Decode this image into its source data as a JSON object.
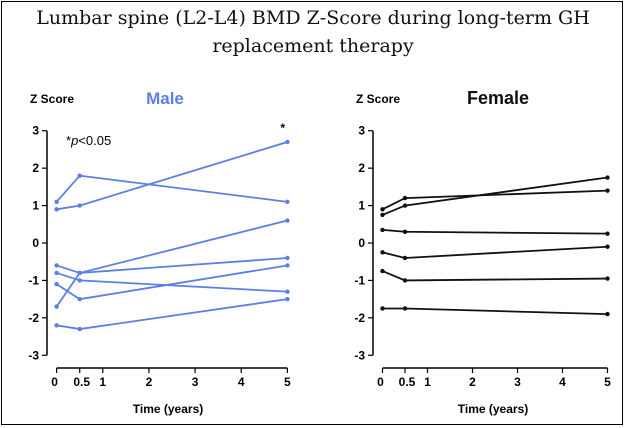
{
  "title_line1": "Lumbar spine (L2-L4) BMD Z-Score during long-term GH",
  "title_line2": "replacement therapy",
  "chart_data": [
    {
      "type": "line",
      "title": "Male",
      "ylabel": "Z Score",
      "xlabel": "Time (years)",
      "annotation": "*p<0.05",
      "annotation_prefix": "*",
      "annotation_italic": "p",
      "annotation_suffix": "<0.05",
      "color": "#5b7fe6",
      "xticks": [
        0,
        0.5,
        1,
        2,
        3,
        4,
        5
      ],
      "xtick_labels": [
        "0",
        "0.5",
        "1",
        "2",
        "3",
        "4",
        "5"
      ],
      "yticks": [
        3,
        2,
        1,
        0,
        -1,
        -2,
        -3
      ],
      "ytick_labels": [
        "3",
        "2",
        "1",
        "0",
        "-1",
        "-2",
        "-3"
      ],
      "xlim": [
        -0.1,
        5.1
      ],
      "ylim": [
        -3.1,
        3.1
      ],
      "star_marker": {
        "x": 4.9,
        "y": 3.05,
        "text": "*"
      },
      "series": [
        {
          "points": [
            [
              0,
              1.1
            ],
            [
              0.5,
              1.8
            ],
            [
              5,
              1.1
            ]
          ]
        },
        {
          "points": [
            [
              0,
              0.9
            ],
            [
              0.5,
              1.0
            ],
            [
              5,
              2.7
            ]
          ]
        },
        {
          "points": [
            [
              0,
              -0.6
            ],
            [
              0.5,
              -0.8
            ],
            [
              5,
              0.6
            ]
          ]
        },
        {
          "points": [
            [
              0,
              -0.8
            ],
            [
              0.5,
              -1.0
            ],
            [
              5,
              -1.3
            ]
          ]
        },
        {
          "points": [
            [
              0,
              -1.1
            ],
            [
              0.5,
              -1.5
            ],
            [
              5,
              -0.6
            ]
          ]
        },
        {
          "points": [
            [
              0,
              -1.7
            ],
            [
              0.5,
              -0.8
            ],
            [
              5,
              -0.4
            ]
          ]
        },
        {
          "points": [
            [
              0,
              -2.2
            ],
            [
              0.5,
              -2.3
            ],
            [
              5,
              -1.5
            ]
          ]
        }
      ]
    },
    {
      "type": "line",
      "title": "Female",
      "ylabel": "Z Score",
      "xlabel": "Time (years)",
      "color": "#111111",
      "xticks": [
        0,
        0.5,
        1,
        2,
        3,
        4,
        5
      ],
      "xtick_labels": [
        "0",
        "0.5",
        "1",
        "2",
        "3",
        "4",
        "5"
      ],
      "yticks": [
        3,
        2,
        1,
        0,
        -1,
        -2,
        -3
      ],
      "ytick_labels": [
        "3",
        "2",
        "1",
        "0",
        "-1",
        "-2",
        "-3"
      ],
      "xlim": [
        -0.1,
        5.1
      ],
      "ylim": [
        -3.1,
        3.1
      ],
      "series": [
        {
          "points": [
            [
              0,
              0.9
            ],
            [
              0.5,
              1.2
            ],
            [
              5,
              1.4
            ]
          ]
        },
        {
          "points": [
            [
              0,
              0.75
            ],
            [
              0.5,
              1.0
            ],
            [
              5,
              1.75
            ]
          ]
        },
        {
          "points": [
            [
              0,
              0.35
            ],
            [
              0.5,
              0.3
            ],
            [
              5,
              0.25
            ]
          ]
        },
        {
          "points": [
            [
              0,
              -0.25
            ],
            [
              0.5,
              -0.4
            ],
            [
              5,
              -0.1
            ]
          ]
        },
        {
          "points": [
            [
              0,
              -0.75
            ],
            [
              0.5,
              -1.0
            ],
            [
              5,
              -0.95
            ]
          ]
        },
        {
          "points": [
            [
              0,
              -1.75
            ],
            [
              0.5,
              -1.75
            ],
            [
              5,
              -1.9
            ]
          ]
        }
      ]
    }
  ]
}
